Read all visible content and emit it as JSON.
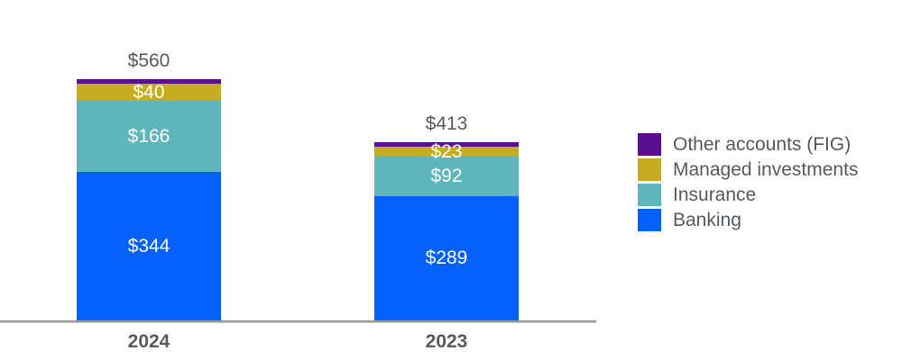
{
  "colors": {
    "banking": "#0561FB",
    "insurance": "#5FB5BC",
    "managed": "#C7AC21",
    "other": "#5A0F8F",
    "axis_gray": "#97999C",
    "text_gray": "#58595B",
    "value_text": "#FFFFFF"
  },
  "legend": {
    "position": "right",
    "items": [
      {
        "label": "Other accounts (FIG)",
        "series": "other"
      },
      {
        "label": "Managed investments",
        "series": "managed"
      },
      {
        "label": "Insurance",
        "series": "insurance"
      },
      {
        "label": "Banking",
        "series": "banking"
      }
    ]
  },
  "chart_data": {
    "type": "bar",
    "stacked": true,
    "grid": false,
    "title": "",
    "xlabel": "",
    "ylabel": "",
    "categories": [
      "2024",
      "2023"
    ],
    "totals": [
      560,
      413
    ],
    "total_labels": [
      "$560",
      "$413"
    ],
    "series": [
      {
        "id": "banking",
        "name": "Banking",
        "values": [
          344,
          289
        ],
        "value_labels": [
          "$344",
          "$289"
        ]
      },
      {
        "id": "insurance",
        "name": "Insurance",
        "values": [
          166,
          92
        ],
        "value_labels": [
          "$166",
          "$92"
        ]
      },
      {
        "id": "managed",
        "name": "Managed investments",
        "values": [
          40,
          23
        ],
        "value_labels": [
          "$40",
          "$23"
        ]
      },
      {
        "id": "other",
        "name": "Other accounts (FIG)",
        "values": [
          null,
          null
        ],
        "value_labels": [
          "",
          ""
        ]
      }
    ]
  }
}
